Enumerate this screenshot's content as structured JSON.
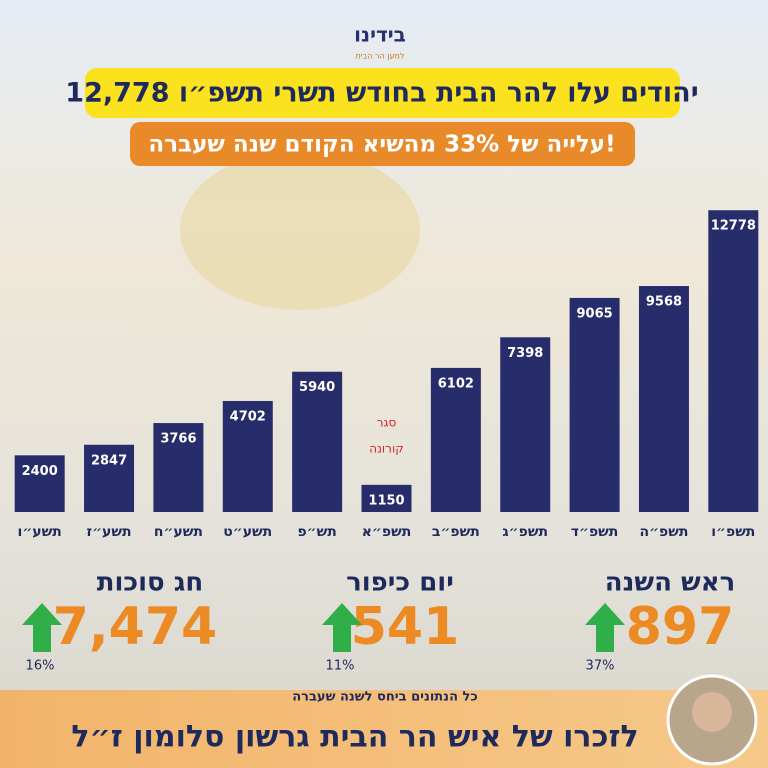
{
  "logo": {
    "name": "בידינו",
    "tagline": "למען הר הבית"
  },
  "chart_data": {
    "type": "bar",
    "title": "12,778 יהודים עלו להר הבית בחודש תשרי תשפ״ו",
    "subtitle": "עלייה של 33% מהשיא הקודם שנה שעברה!",
    "categories": [
      "תשע״ו",
      "תשע״ז",
      "תשע״ח",
      "תשע״ט",
      "תש״פ",
      "תשפ״א",
      "תשפ״ב",
      "תשפ״ג",
      "תשפ״ד",
      "תשפ״ה",
      "תשפ״ו"
    ],
    "values": [
      2400,
      2847,
      3766,
      4702,
      5940,
      1150,
      6102,
      7398,
      9065,
      9568,
      12778
    ],
    "color": "#272c6b",
    "ylim": [
      0,
      13000
    ],
    "annotations": [
      {
        "category_index": 5,
        "lines": [
          "סגר",
          "קורונה"
        ],
        "color": "#d6232a"
      }
    ]
  },
  "stats": [
    {
      "title": "ראש השנה",
      "value": "897",
      "change": "37%"
    },
    {
      "title": "יום כיפור",
      "value": "541",
      "change": "11%"
    },
    {
      "title": "חג סוכות",
      "value": "7,474",
      "change": "16%"
    }
  ],
  "footnote": "כל הנתונים ביחס לשנה שעברה",
  "memorial": "לזכרו של איש הר הבית גרשון סלומון ז״ל"
}
